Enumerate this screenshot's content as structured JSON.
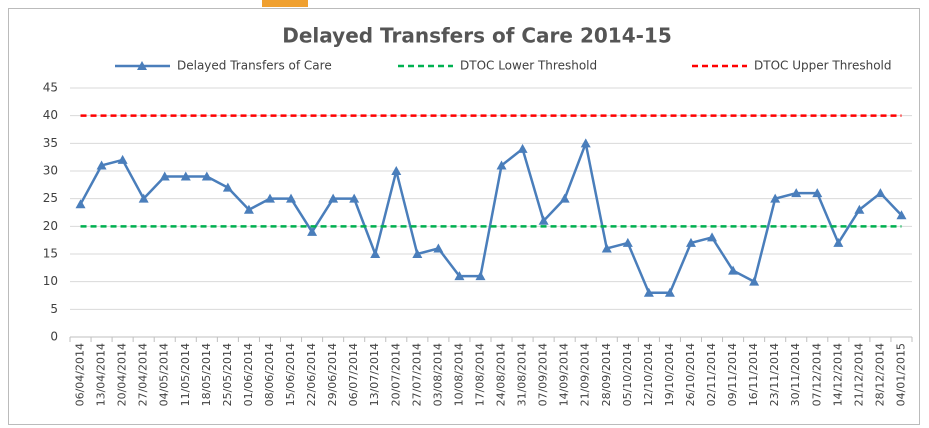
{
  "chart_data": {
    "type": "line",
    "title": "Delayed Transfers of Care 2014-15",
    "categories": [
      "06/04/2014",
      "13/04/2014",
      "20/04/2014",
      "27/04/2014",
      "04/05/2014",
      "11/05/2014",
      "18/05/2014",
      "25/05/2014",
      "01/06/2014",
      "08/06/2014",
      "15/06/2014",
      "22/06/2014",
      "29/06/2014",
      "06/07/2014",
      "13/07/2014",
      "20/07/2014",
      "27/07/2014",
      "03/08/2014",
      "10/08/2014",
      "17/08/2014",
      "24/08/2014",
      "31/08/2014",
      "07/09/2014",
      "14/09/2014",
      "21/09/2014",
      "28/09/2014",
      "05/10/2014",
      "12/10/2014",
      "19/10/2014",
      "26/10/2014",
      "02/11/2014",
      "09/11/2014",
      "16/11/2014",
      "23/11/2014",
      "30/11/2014",
      "07/12/2014",
      "14/12/2014",
      "21/12/2014",
      "28/12/2014",
      "04/01/2015"
    ],
    "series": [
      {
        "name": "Delayed Transfers of Care",
        "color": "#4a7ebb",
        "linestyle": "solid",
        "marker": "triangle",
        "values": [
          24,
          31,
          32,
          25,
          29,
          29,
          29,
          27,
          23,
          25,
          25,
          19,
          25,
          25,
          15,
          30,
          15,
          16,
          11,
          11,
          31,
          34,
          21,
          25,
          35,
          16,
          17,
          8,
          8,
          17,
          18,
          12,
          10,
          25,
          26,
          26,
          17,
          23,
          26,
          22
        ]
      },
      {
        "name": "DTOC Lower Threshold",
        "color": "#00b050",
        "linestyle": "dashed",
        "marker": "none",
        "values": [
          20,
          20,
          20,
          20,
          20,
          20,
          20,
          20,
          20,
          20,
          20,
          20,
          20,
          20,
          20,
          20,
          20,
          20,
          20,
          20,
          20,
          20,
          20,
          20,
          20,
          20,
          20,
          20,
          20,
          20,
          20,
          20,
          20,
          20,
          20,
          20,
          20,
          20,
          20,
          20
        ]
      },
      {
        "name": "DTOC Upper Threshold",
        "color": "#ff0000",
        "linestyle": "dashed",
        "marker": "none",
        "values": [
          40,
          40,
          40,
          40,
          40,
          40,
          40,
          40,
          40,
          40,
          40,
          40,
          40,
          40,
          40,
          40,
          40,
          40,
          40,
          40,
          40,
          40,
          40,
          40,
          40,
          40,
          40,
          40,
          40,
          40,
          40,
          40,
          40,
          40,
          40,
          40,
          40,
          40,
          40,
          40
        ]
      }
    ],
    "ylim": [
      0,
      45
    ],
    "yticks": [
      0,
      5,
      10,
      15,
      20,
      25,
      30,
      35,
      40,
      45
    ],
    "grid": true,
    "legend": "top"
  }
}
